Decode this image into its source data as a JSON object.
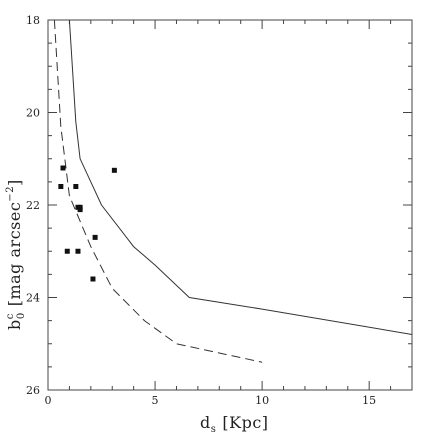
{
  "chart_data": {
    "type": "scatter",
    "xlabel": "d",
    "xlabel_sub": "s",
    "xlabel_units": "[Kpc]",
    "ylabel": "b",
    "ylabel_sub": "0",
    "ylabel_sup": "c",
    "ylabel_units": "[mag arcsec",
    "ylabel_units_sup": "−2",
    "ylabel_units_close": "]",
    "xlim": [
      0,
      17
    ],
    "ylim": [
      26,
      18
    ],
    "y_inverted": true,
    "x_ticks": [
      0,
      5,
      10,
      15
    ],
    "y_ticks": [
      18,
      20,
      22,
      24,
      26
    ],
    "grid": false,
    "series": [
      {
        "style": "solid",
        "points": [
          [
            1.0,
            18.0
          ],
          [
            1.3,
            20.2
          ],
          [
            1.5,
            21.0
          ],
          [
            2.5,
            22.0
          ],
          [
            4.0,
            22.9
          ],
          [
            5.0,
            23.3
          ],
          [
            6.6,
            24.0
          ],
          [
            10.0,
            24.25
          ],
          [
            17.0,
            24.8
          ]
        ]
      },
      {
        "style": "dashed",
        "points": [
          [
            0.3,
            18.0
          ],
          [
            0.6,
            20.3
          ],
          [
            1.0,
            21.8
          ],
          [
            2.0,
            22.9
          ],
          [
            3.0,
            23.8
          ],
          [
            4.5,
            24.5
          ],
          [
            6.0,
            25.0
          ],
          [
            8.0,
            25.2
          ],
          [
            10.0,
            25.4
          ]
        ]
      },
      {
        "style": "points",
        "points": [
          [
            0.7,
            21.2
          ],
          [
            0.6,
            21.6
          ],
          [
            1.3,
            21.6
          ],
          [
            1.4,
            22.05
          ],
          [
            1.5,
            22.05
          ],
          [
            1.5,
            22.1
          ],
          [
            2.2,
            22.7
          ],
          [
            0.9,
            23.0
          ],
          [
            1.4,
            23.0
          ],
          [
            2.1,
            23.6
          ],
          [
            3.1,
            21.25
          ]
        ]
      }
    ]
  }
}
